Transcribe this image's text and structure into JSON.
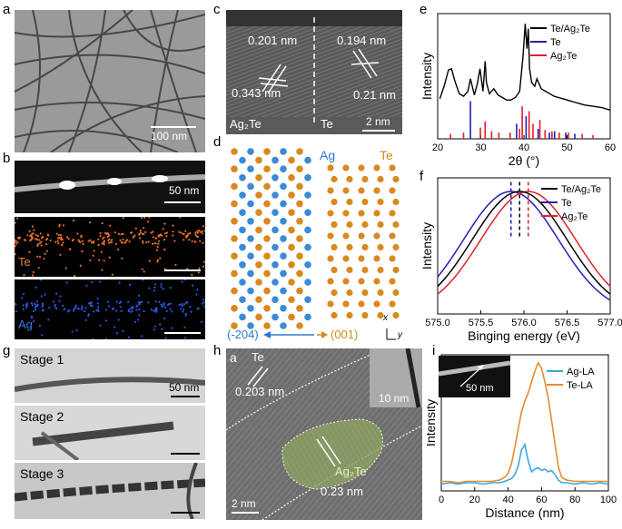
{
  "panels": {
    "a": {
      "label": "a",
      "scale": "100 nm"
    },
    "b": {
      "label": "b",
      "haadf_scale": "50 nm",
      "te_map": "Te",
      "ag_map": "Ag"
    },
    "c": {
      "label": "c",
      "left_phase": "Ag₂Te",
      "right_phase": "Te",
      "d1": "0.201 nm",
      "d2": "0.343 nm",
      "d3": "0.194 nm",
      "d4": "0.21 nm",
      "scale": "2 nm"
    },
    "d": {
      "label": "d",
      "ag": "Ag",
      "te": "Te",
      "dir_left": "(-204)",
      "dir_right": "(001)",
      "axis_x": "x",
      "axis_y": "y"
    },
    "e": {
      "label": "e"
    },
    "f": {
      "label": "f"
    },
    "g": {
      "label": "g",
      "stage1": "Stage 1",
      "stage2": "Stage 2",
      "stage3": "Stage 3",
      "scale": "50 nm"
    },
    "h": {
      "label": "h",
      "inner": "a",
      "te": "Te",
      "te_d": "0.203 nm",
      "inset_scale": "10 nm",
      "ag2te": "Ag₂Te",
      "ag2te_d": "0.23 nm",
      "scale": "2 nm"
    },
    "i": {
      "label": "i",
      "inset_scale": "50 nm"
    }
  },
  "chart_data": [
    {
      "id": "e",
      "type": "line",
      "title": "",
      "xlabel": "2θ (°)",
      "ylabel": "Intensity",
      "xlim": [
        20,
        60
      ],
      "ylim": [
        0,
        1
      ],
      "xticks": [
        20,
        30,
        40,
        50,
        60
      ],
      "legend": [
        "Te/Ag₂Te",
        "Te",
        "Ag₂Te"
      ],
      "colors": [
        "#000000",
        "#1f1fb4",
        "#e0202a"
      ],
      "series": [
        {
          "name": "Te/Ag₂Te",
          "x": [
            20.5,
            21.5,
            22.5,
            23.2,
            24,
            25,
            26,
            27,
            27.6,
            28.5,
            29.2,
            29.8,
            30.5,
            31,
            31.3,
            32,
            33,
            34,
            35,
            36,
            37,
            38,
            39,
            39.8,
            40.3,
            40.7,
            41,
            41.3,
            41.8,
            42.5,
            43,
            44,
            45,
            46,
            47,
            48,
            49,
            50,
            52,
            54,
            56,
            58,
            60
          ],
          "y": [
            0.32,
            0.42,
            0.55,
            0.56,
            0.46,
            0.36,
            0.34,
            0.38,
            0.48,
            0.35,
            0.44,
            0.56,
            0.38,
            0.62,
            0.45,
            0.36,
            0.4,
            0.35,
            0.33,
            0.31,
            0.31,
            0.33,
            0.38,
            0.66,
            0.92,
            0.72,
            0.88,
            0.56,
            0.45,
            0.42,
            0.48,
            0.4,
            0.38,
            0.36,
            0.34,
            0.33,
            0.32,
            0.31,
            0.29,
            0.27,
            0.26,
            0.25,
            0.23
          ]
        }
      ],
      "reference_sticks": {
        "Te": {
          "x": [
            27.6,
            38.3,
            40.5,
            43.3,
            45.9,
            47.1,
            49.7,
            51.8
          ],
          "h": [
            0.3,
            0.12,
            0.18,
            0.08,
            0.05,
            0.06,
            0.05,
            0.04
          ]
        },
        "Ag₂Te": {
          "x": [
            23.0,
            26.0,
            29.9,
            31.0,
            32.5,
            34.2,
            36.8,
            39.0,
            39.6,
            41.2,
            42.1,
            43.7,
            44.9,
            46.5,
            48.2,
            50.3,
            53.5,
            56.0
          ],
          "h": [
            0.04,
            0.05,
            0.09,
            0.14,
            0.06,
            0.05,
            0.05,
            0.08,
            0.26,
            0.22,
            0.12,
            0.15,
            0.07,
            0.06,
            0.05,
            0.05,
            0.04,
            0.03
          ]
        }
      }
    },
    {
      "id": "f",
      "type": "line",
      "title": "",
      "xlabel": "Binging energy (eV)",
      "ylabel": "Intensity",
      "xlim": [
        575.0,
        577.0
      ],
      "ylim": [
        0,
        1
      ],
      "xticks": [
        575.0,
        575.5,
        576.0,
        576.5,
        577.0
      ],
      "legend": [
        "Te/Ag₂Te",
        "Te",
        "Ag₂Te"
      ],
      "colors": [
        "#000000",
        "#1f1fb4",
        "#e0202a"
      ],
      "series": [
        {
          "name": "Te/Ag₂Te",
          "center": 575.95,
          "sigma": 0.55,
          "amplitude": 0.9
        },
        {
          "name": "Te",
          "center": 575.85,
          "sigma": 0.55,
          "amplitude": 0.9
        },
        {
          "name": "Ag₂Te",
          "center": 576.05,
          "sigma": 0.55,
          "amplitude": 0.9
        }
      ],
      "marker_lines": [
        575.85,
        575.95,
        576.05
      ]
    },
    {
      "id": "i",
      "type": "line",
      "title": "",
      "xlabel": "Distance (nm)",
      "ylabel": "Intensity",
      "xlim": [
        0,
        100
      ],
      "ylim": [
        0,
        1
      ],
      "xticks": [
        0,
        20,
        40,
        60,
        80,
        100
      ],
      "legend": [
        "Ag-LA",
        "Te-LA"
      ],
      "colors": [
        "#3aa7e0",
        "#e58c2c"
      ],
      "series": [
        {
          "name": "Ag-LA",
          "x": [
            0,
            5,
            10,
            15,
            20,
            25,
            30,
            35,
            38,
            40,
            42,
            44,
            46,
            48,
            50,
            52,
            54,
            56,
            58,
            60,
            62,
            64,
            66,
            68,
            70,
            72,
            75,
            80,
            85,
            90,
            95,
            100
          ],
          "y": [
            0.05,
            0.06,
            0.05,
            0.06,
            0.06,
            0.05,
            0.06,
            0.06,
            0.07,
            0.08,
            0.09,
            0.12,
            0.18,
            0.3,
            0.34,
            0.22,
            0.14,
            0.16,
            0.17,
            0.15,
            0.16,
            0.14,
            0.15,
            0.12,
            0.08,
            0.06,
            0.06,
            0.05,
            0.06,
            0.05,
            0.06,
            0.05
          ]
        },
        {
          "name": "Te-LA",
          "x": [
            0,
            5,
            10,
            15,
            20,
            25,
            30,
            35,
            38,
            40,
            42,
            44,
            46,
            48,
            50,
            52,
            54,
            56,
            58,
            60,
            62,
            64,
            66,
            68,
            70,
            72,
            75,
            80,
            85,
            90,
            95,
            100
          ],
          "y": [
            0.07,
            0.07,
            0.06,
            0.07,
            0.07,
            0.07,
            0.07,
            0.08,
            0.1,
            0.13,
            0.2,
            0.32,
            0.45,
            0.58,
            0.66,
            0.72,
            0.8,
            0.88,
            0.94,
            0.9,
            0.8,
            0.68,
            0.52,
            0.35,
            0.18,
            0.1,
            0.08,
            0.07,
            0.07,
            0.07,
            0.07,
            0.07
          ]
        }
      ]
    }
  ]
}
